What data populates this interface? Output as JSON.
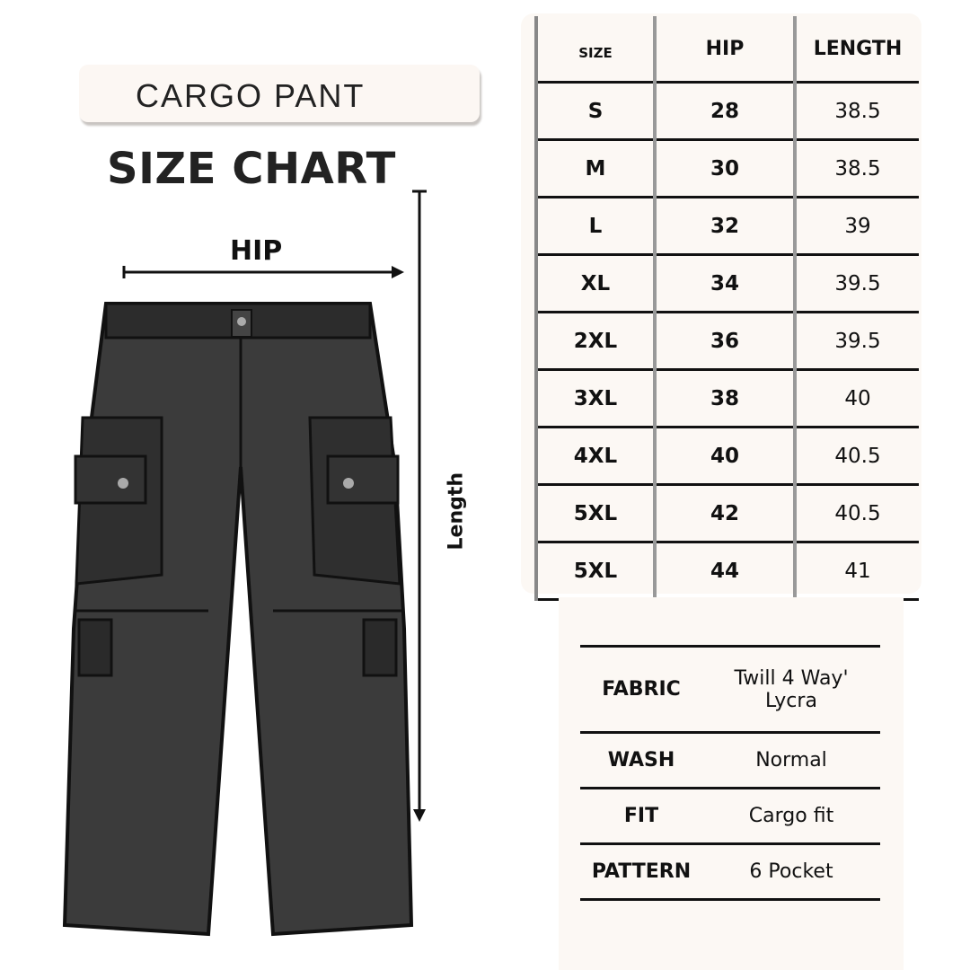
{
  "header": {
    "product": "CARGO PANT",
    "title": "SIZE CHART"
  },
  "diagram": {
    "hip_label": "HIP",
    "length_label": "Length"
  },
  "size_table": {
    "columns": [
      "SIZE",
      "HIP",
      "LENGTH"
    ],
    "rows": [
      {
        "size": "S",
        "hip": "28",
        "length": "38.5"
      },
      {
        "size": "M",
        "hip": "30",
        "length": "38.5"
      },
      {
        "size": "L",
        "hip": "32",
        "length": "39"
      },
      {
        "size": "XL",
        "hip": "34",
        "length": "39.5"
      },
      {
        "size": "2XL",
        "hip": "36",
        "length": "39.5"
      },
      {
        "size": "3XL",
        "hip": "38",
        "length": "40"
      },
      {
        "size": "4XL",
        "hip": "40",
        "length": "40.5"
      },
      {
        "size": "5XL",
        "hip": "42",
        "length": "40.5"
      },
      {
        "size": "5XL",
        "hip": "44",
        "length": "41"
      }
    ]
  },
  "spec_table": [
    {
      "label": "FABRIC",
      "value": "Twill 4 Way' Lycra"
    },
    {
      "label": "WASH",
      "value": "Normal"
    },
    {
      "label": "FIT",
      "value": "Cargo fit"
    },
    {
      "label": "PATTERN",
      "value": "6 Pocket"
    }
  ],
  "colors": {
    "panel": "#fcf8f4",
    "text": "#111111",
    "pants": "#3a3a3a"
  }
}
